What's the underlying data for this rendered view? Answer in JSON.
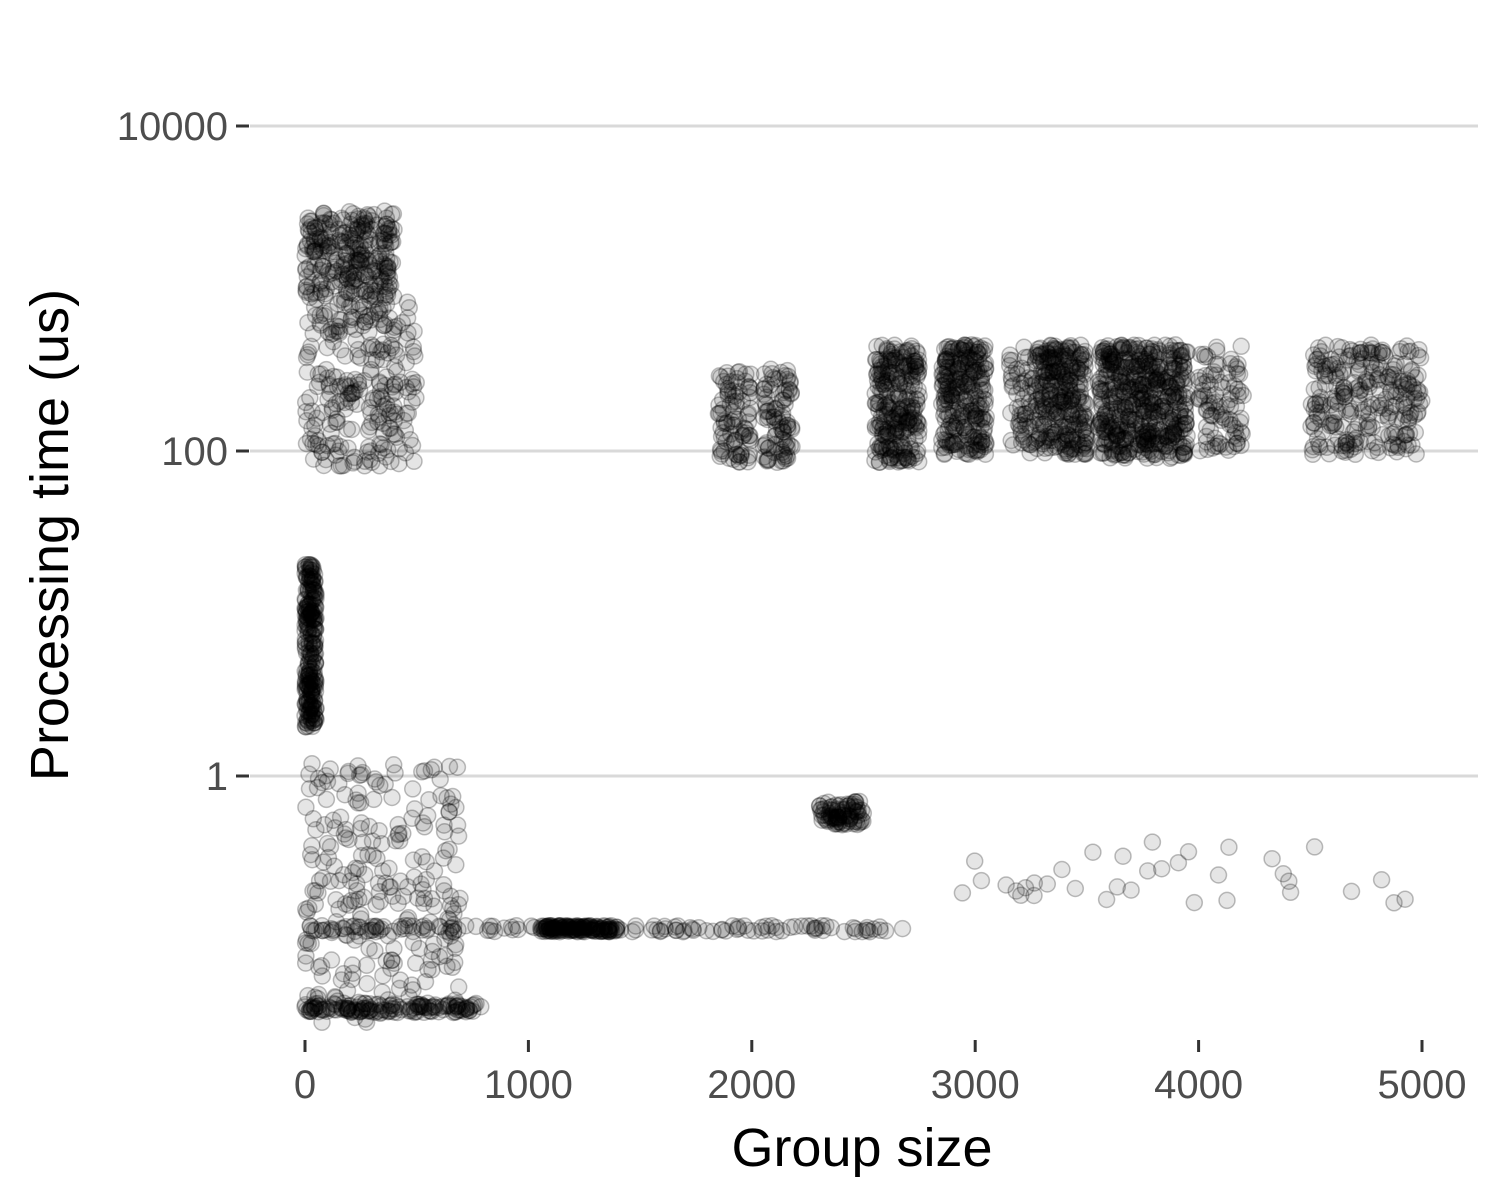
{
  "chart_data": {
    "type": "scatter",
    "title": "",
    "xlabel": "Group size",
    "ylabel": "Processing time (us)",
    "x_ticks": [
      0,
      1000,
      2000,
      3000,
      4000,
      5000
    ],
    "x_tick_labels": [
      "0",
      "1000",
      "2000",
      "3000",
      "4000",
      "5000"
    ],
    "y_scale": "log10",
    "y_ticks": [
      1,
      100,
      10000
    ],
    "y_tick_labels": [
      "1",
      "100",
      "10000"
    ],
    "xlim": [
      -120,
      5250
    ],
    "ylim": [
      0.02,
      25000
    ],
    "grid": "horizontal major",
    "point_color": "#000000",
    "point_alpha": 0.1,
    "clusters": [
      {
        "x_range": [
          0,
          500
        ],
        "y_range": [
          80,
          900
        ],
        "density": "dense"
      },
      {
        "x_range": [
          0,
          400
        ],
        "y_range": [
          900,
          3000
        ],
        "density": "dense"
      },
      {
        "x_range": [
          1850,
          2000
        ],
        "y_range": [
          85,
          320
        ],
        "density": "medium"
      },
      {
        "x_range": [
          2050,
          2180
        ],
        "y_range": [
          85,
          320
        ],
        "density": "medium"
      },
      {
        "x_range": [
          2550,
          2750
        ],
        "y_range": [
          85,
          450
        ],
        "density": "dense"
      },
      {
        "x_range": [
          2850,
          3050
        ],
        "y_range": [
          95,
          450
        ],
        "density": "dense"
      },
      {
        "x_range": [
          3150,
          3300
        ],
        "y_range": [
          95,
          450
        ],
        "density": "medium"
      },
      {
        "x_range": [
          3300,
          3500
        ],
        "y_range": [
          95,
          450
        ],
        "density": "dense"
      },
      {
        "x_range": [
          3550,
          3750
        ],
        "y_range": [
          90,
          450
        ],
        "density": "dense"
      },
      {
        "x_range": [
          3750,
          3950
        ],
        "y_range": [
          90,
          450
        ],
        "density": "dense"
      },
      {
        "x_range": [
          4000,
          4200
        ],
        "y_range": [
          100,
          450
        ],
        "density": "medium"
      },
      {
        "x_range": [
          4500,
          5000
        ],
        "y_range": [
          95,
          450
        ],
        "density": "dense"
      },
      {
        "x_range": [
          0,
          50
        ],
        "y_range": [
          2,
          20
        ],
        "density": "dense"
      },
      {
        "x_range": [
          0,
          700
        ],
        "y_range": [
          0.03,
          1.2
        ],
        "density": "dense"
      },
      {
        "x_range": [
          0,
          2700
        ],
        "y_range": [
          0.11,
          0.12
        ],
        "density": "band"
      },
      {
        "x_range": [
          1050,
          1400
        ],
        "y_range": [
          0.11,
          0.12
        ],
        "density": "band"
      },
      {
        "x_range": [
          0,
          800
        ],
        "y_range": [
          0.035,
          0.04
        ],
        "density": "band"
      },
      {
        "x_range": [
          2900,
          4980
        ],
        "y_range": [
          0.16,
          0.4
        ],
        "density": "sparse"
      },
      {
        "x_range": [
          2300,
          2500
        ],
        "y_range": [
          0.5,
          0.7
        ],
        "density": "medium"
      }
    ]
  }
}
